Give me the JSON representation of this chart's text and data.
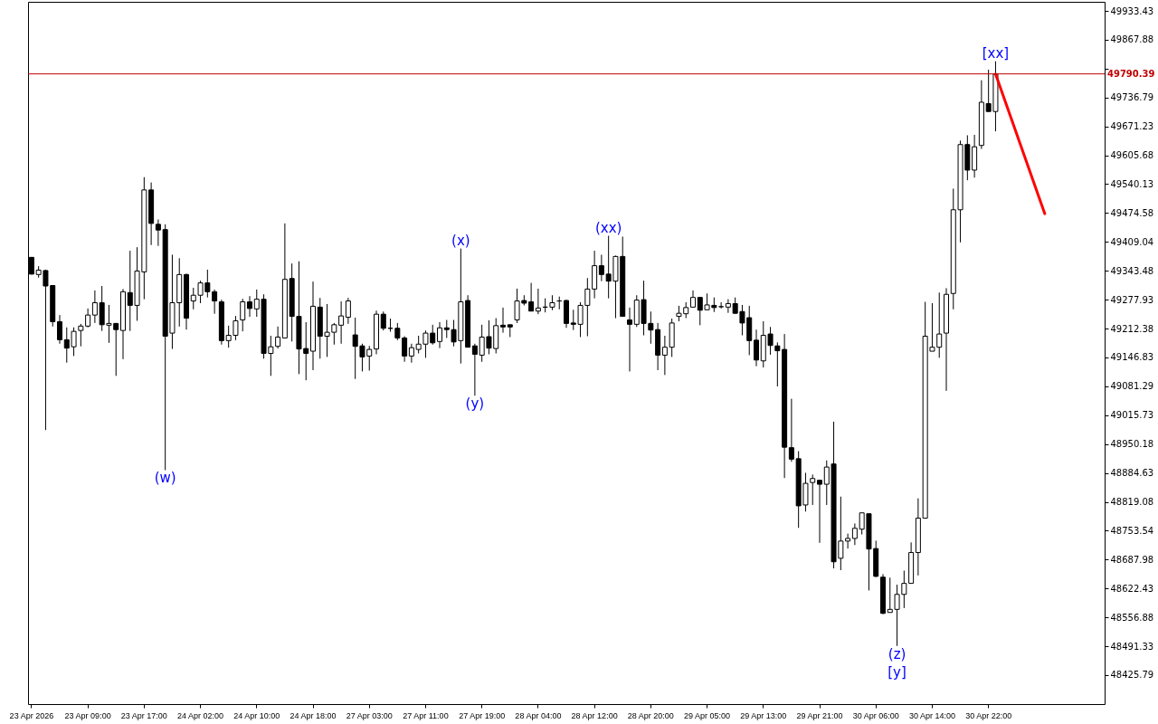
{
  "chart_data": {
    "type": "candlestick",
    "categories": [
      "23 Apr 2026",
      null,
      null,
      null,
      null,
      null,
      null,
      null,
      "23 Apr 09:00",
      null,
      null,
      null,
      null,
      null,
      null,
      null,
      "23 Apr 17:00",
      null,
      null,
      null,
      null,
      null,
      null,
      null,
      "24 Apr 02:00",
      null,
      null,
      null,
      null,
      null,
      null,
      null,
      "24 Apr 10:00",
      null,
      null,
      null,
      null,
      null,
      null,
      null,
      "24 Apr 18:00",
      null,
      null,
      null,
      null,
      null,
      null,
      null,
      "27 Apr 03:00",
      null,
      null,
      null,
      null,
      null,
      null,
      null,
      "27 Apr 11:00",
      null,
      null,
      null,
      null,
      null,
      null,
      null,
      "27 Apr 19:00",
      null,
      null,
      null,
      null,
      null,
      null,
      null,
      "28 Apr 04:00",
      null,
      null,
      null,
      null,
      null,
      null,
      null,
      "28 Apr 12:00",
      null,
      null,
      null,
      null,
      null,
      null,
      null,
      "28 Apr 20:00",
      null,
      null,
      null,
      null,
      null,
      null,
      null,
      "29 Apr 05:00",
      null,
      null,
      null,
      null,
      null,
      null,
      null,
      "29 Apr 13:00",
      null,
      null,
      null,
      null,
      null,
      null,
      null,
      "29 Apr 21:00",
      null,
      null,
      null,
      null,
      null,
      null,
      null,
      "30 Apr 06:00",
      null,
      null,
      null,
      null,
      null,
      null,
      null,
      "30 Apr 14:00",
      null,
      null,
      null,
      null,
      null,
      null,
      null,
      "30 Apr 22:00",
      null,
      null,
      null,
      null,
      null,
      null,
      null,
      null,
      null,
      null,
      null,
      null,
      null,
      null,
      null,
      null
    ],
    "ohlc": [
      [
        49374,
        49374,
        49335,
        49336
      ],
      [
        49335,
        49354,
        49328,
        49345
      ],
      [
        49344,
        49346,
        48982,
        49309
      ],
      [
        49310,
        49310,
        49217,
        49228
      ],
      [
        49228,
        49243,
        49178,
        49187
      ],
      [
        49187,
        49215,
        49135,
        49168
      ],
      [
        49171,
        49215,
        49150,
        49206
      ],
      [
        49208,
        49223,
        49172,
        49218
      ],
      [
        49218,
        49258,
        49215,
        49243
      ],
      [
        49243,
        49299,
        49225,
        49271
      ],
      [
        49271,
        49309,
        49207,
        49221
      ],
      [
        49220,
        49266,
        49180,
        49224
      ],
      [
        49224,
        49224,
        49105,
        49210
      ],
      [
        49208,
        49302,
        49143,
        49296
      ],
      [
        49294,
        49389,
        49207,
        49265
      ],
      [
        49265,
        49397,
        49230,
        49343
      ],
      [
        49341,
        49556,
        49279,
        49527
      ],
      [
        49527,
        49544,
        49402,
        49451
      ],
      [
        49449,
        49460,
        49400,
        49436
      ],
      [
        49437,
        49449,
        48891,
        49195
      ],
      [
        49202,
        49380,
        49166,
        49271
      ],
      [
        49271,
        49372,
        49217,
        49335
      ],
      [
        49335,
        49337,
        49210,
        49236
      ],
      [
        49275,
        49305,
        49256,
        49288
      ],
      [
        49288,
        49321,
        49270,
        49316
      ],
      [
        49316,
        49346,
        49283,
        49296
      ],
      [
        49296,
        49301,
        49246,
        49275
      ],
      [
        49273,
        49278,
        49176,
        49185
      ],
      [
        49185,
        49219,
        49169,
        49197
      ],
      [
        49197,
        49241,
        49186,
        49230
      ],
      [
        49232,
        49280,
        49206,
        49273
      ],
      [
        49273,
        49286,
        49239,
        49258
      ],
      [
        49257,
        49301,
        49239,
        49279
      ],
      [
        49279,
        49290,
        49144,
        49156
      ],
      [
        49156,
        49196,
        49105,
        49171
      ],
      [
        49172,
        49217,
        49167,
        49193
      ],
      [
        49191,
        49451,
        49191,
        49324
      ],
      [
        49326,
        49360,
        49183,
        49240
      ],
      [
        49240,
        49365,
        49109,
        49166
      ],
      [
        49167,
        49227,
        49095,
        49156
      ],
      [
        49161,
        49319,
        49118,
        49263
      ],
      [
        49261,
        49282,
        49144,
        49195
      ],
      [
        49195,
        49268,
        49148,
        49204
      ],
      [
        49204,
        49225,
        49176,
        49221
      ],
      [
        49220,
        49274,
        49178,
        49241
      ],
      [
        49238,
        49282,
        49223,
        49275
      ],
      [
        49198,
        49237,
        49098,
        49172
      ],
      [
        49173,
        49178,
        49115,
        49148
      ],
      [
        49150,
        49173,
        49117,
        49165
      ],
      [
        49166,
        49253,
        49154,
        49245
      ],
      [
        49245,
        49251,
        49208,
        49213
      ],
      [
        49213,
        49235,
        49205,
        49213
      ],
      [
        49213,
        49225,
        49186,
        49191
      ],
      [
        49191,
        49195,
        49137,
        49150
      ],
      [
        49150,
        49178,
        49135,
        49169
      ],
      [
        49165,
        49196,
        49156,
        49177
      ],
      [
        49177,
        49208,
        49146,
        49202
      ],
      [
        49202,
        49221,
        49176,
        49180
      ],
      [
        49183,
        49227,
        49168,
        49214
      ],
      [
        49214,
        49232,
        49191,
        49210
      ],
      [
        49210,
        49232,
        49172,
        49182
      ],
      [
        49185,
        49394,
        49133,
        49273
      ],
      [
        49276,
        49288,
        49170,
        49170
      ],
      [
        49173,
        49178,
        49060,
        49154
      ],
      [
        49152,
        49221,
        49137,
        49193
      ],
      [
        49194,
        49231,
        49154,
        49168
      ],
      [
        49167,
        49236,
        49156,
        49219
      ],
      [
        49220,
        49260,
        49203,
        49216
      ],
      [
        49221,
        49221,
        49193,
        49216
      ],
      [
        49232,
        49303,
        49225,
        49275
      ],
      [
        49276,
        49288,
        49265,
        49270
      ],
      [
        49273,
        49316,
        49252,
        49252
      ],
      [
        49252,
        49303,
        49245,
        49259
      ],
      [
        49261,
        49281,
        49249,
        49261
      ],
      [
        49261,
        49288,
        49254,
        49271
      ],
      [
        49275,
        49285,
        49256,
        49275
      ],
      [
        49276,
        49278,
        49214,
        49224
      ],
      [
        49225,
        49255,
        49209,
        49222
      ],
      [
        49222,
        49272,
        49193,
        49265
      ],
      [
        49265,
        49327,
        49195,
        49302
      ],
      [
        49302,
        49389,
        49281,
        49355
      ],
      [
        49355,
        49380,
        49320,
        49335
      ],
      [
        49336,
        49423,
        49281,
        49320
      ],
      [
        49320,
        49378,
        49236,
        49376
      ],
      [
        49376,
        49421,
        49240,
        49240
      ],
      [
        49232,
        49260,
        49115,
        49222
      ],
      [
        49222,
        49288,
        49216,
        49277
      ],
      [
        49278,
        49321,
        49197,
        49224
      ],
      [
        49224,
        49251,
        49178,
        49209
      ],
      [
        49210,
        49225,
        49118,
        49152
      ],
      [
        49152,
        49196,
        49107,
        49170
      ],
      [
        49170,
        49235,
        49148,
        49225
      ],
      [
        49240,
        49264,
        49229,
        49247
      ],
      [
        49246,
        49272,
        49236,
        49260
      ],
      [
        49261,
        49299,
        49261,
        49283
      ],
      [
        49283,
        49283,
        49220,
        49254
      ],
      [
        49255,
        49292,
        49255,
        49266
      ],
      [
        49265,
        49283,
        49250,
        49260
      ],
      [
        49262,
        49272,
        49258,
        49262
      ],
      [
        49261,
        49279,
        49248,
        49269
      ],
      [
        49269,
        49283,
        49246,
        49247
      ],
      [
        49251,
        49266,
        49197,
        49225
      ],
      [
        49237,
        49264,
        49152,
        49185
      ],
      [
        49186,
        49210,
        49127,
        49141
      ],
      [
        49139,
        49229,
        49124,
        49197
      ],
      [
        49200,
        49216,
        49153,
        49174
      ],
      [
        49173,
        49181,
        49081,
        49162
      ],
      [
        49165,
        49200,
        48873,
        48943
      ],
      [
        48942,
        49053,
        48910,
        48916
      ],
      [
        48917,
        48934,
        48760,
        48810
      ],
      [
        48812,
        48885,
        48797,
        48861
      ],
      [
        48863,
        48881,
        48812,
        48872
      ],
      [
        48868,
        48868,
        48726,
        48859
      ],
      [
        48859,
        48913,
        48812,
        48898
      ],
      [
        48905,
        49001,
        48668,
        48683
      ],
      [
        48691,
        48831,
        48664,
        48730
      ],
      [
        48730,
        48747,
        48713,
        48736
      ],
      [
        48736,
        48770,
        48721,
        48759
      ],
      [
        48757,
        48794,
        48745,
        48794
      ],
      [
        48792,
        48792,
        48618,
        48712
      ],
      [
        48713,
        48731,
        48648,
        48650
      ],
      [
        48648,
        48655,
        48564,
        48566
      ],
      [
        48568,
        48647,
        48568,
        48575
      ],
      [
        48575,
        48631,
        48492,
        48609
      ],
      [
        48609,
        48663,
        48578,
        48634
      ],
      [
        48634,
        48727,
        48634,
        48704
      ],
      [
        48704,
        48827,
        48652,
        48782
      ],
      [
        48782,
        49273,
        48782,
        49195
      ],
      [
        49161,
        49270,
        49161,
        49170
      ],
      [
        49170,
        49294,
        49146,
        49200
      ],
      [
        49202,
        49304,
        49071,
        49290
      ],
      [
        49292,
        49530,
        49256,
        49482
      ],
      [
        49482,
        49639,
        49408,
        49630
      ],
      [
        49630,
        49651,
        49549,
        49572
      ],
      [
        49572,
        49652,
        49555,
        49625
      ],
      [
        49628,
        49776,
        49620,
        49726
      ],
      [
        49723,
        49800,
        49705,
        49705
      ],
      [
        49705,
        49819,
        49660,
        49790
      ],
      null,
      null,
      null,
      null,
      null,
      null,
      null,
      null,
      null,
      null,
      null,
      null,
      null,
      null,
      null
    ],
    "series": [
      {
        "type": "line",
        "color": "#ff0000",
        "values": [
          null,
          null,
          null,
          null,
          null,
          null,
          null,
          null,
          null,
          null,
          null,
          null,
          null,
          null,
          null,
          null,
          null,
          null,
          null,
          null,
          null,
          null,
          null,
          null,
          null,
          null,
          null,
          null,
          null,
          null,
          null,
          null,
          null,
          null,
          null,
          null,
          null,
          null,
          null,
          null,
          null,
          null,
          null,
          null,
          null,
          null,
          null,
          null,
          null,
          null,
          null,
          null,
          null,
          null,
          null,
          null,
          null,
          null,
          null,
          null,
          null,
          null,
          null,
          null,
          null,
          null,
          null,
          null,
          null,
          null,
          null,
          null,
          null,
          null,
          null,
          null,
          null,
          null,
          null,
          null,
          null,
          null,
          null,
          null,
          null,
          null,
          null,
          null,
          null,
          null,
          null,
          null,
          null,
          null,
          null,
          null,
          null,
          null,
          null,
          null,
          null,
          null,
          null,
          null,
          null,
          null,
          null,
          null,
          null,
          null,
          null,
          null,
          null,
          null,
          null,
          null,
          null,
          null,
          null,
          null,
          null,
          null,
          null,
          null,
          null,
          null,
          null,
          null,
          null,
          null,
          null,
          null,
          null,
          null,
          null,
          null,
          null,
          49790,
          null,
          null,
          null,
          null,
          null,
          null,
          49473,
          null,
          null,
          null,
          null,
          null,
          null,
          null,
          null
        ]
      }
    ],
    "ylim": [
      48360,
      49954
    ],
    "yticks": [
      49933.43,
      49867.88,
      {
        "value": 49802.33,
        "label": null
      },
      49736.79,
      49671.23,
      49605.68,
      49540.13,
      49474.58,
      49409.04,
      49343.48,
      49277.93,
      49212.38,
      49146.83,
      49081.29,
      49015.73,
      48950.18,
      48884.63,
      48819.08,
      48753.54,
      48687.98,
      48622.43,
      48556.88,
      48491.33,
      48425.79
    ],
    "ref_lines": [
      {
        "axis": "y",
        "value": 49790.39,
        "label": "49790.39",
        "color": "#c00000"
      }
    ],
    "annotations": [
      {
        "text": "(w)",
        "y": 48891
      },
      {
        "text": "(x)",
        "y": 49394
      },
      {
        "text": "(y)",
        "y": 49060
      },
      {
        "text": "(xx)",
        "y": 49423
      },
      {
        "text": "(z)",
        "y": 48492
      },
      {
        "text": "[y]",
        "y": 48492
      },
      {
        "text": "[xx]",
        "y": 49819
      }
    ]
  }
}
